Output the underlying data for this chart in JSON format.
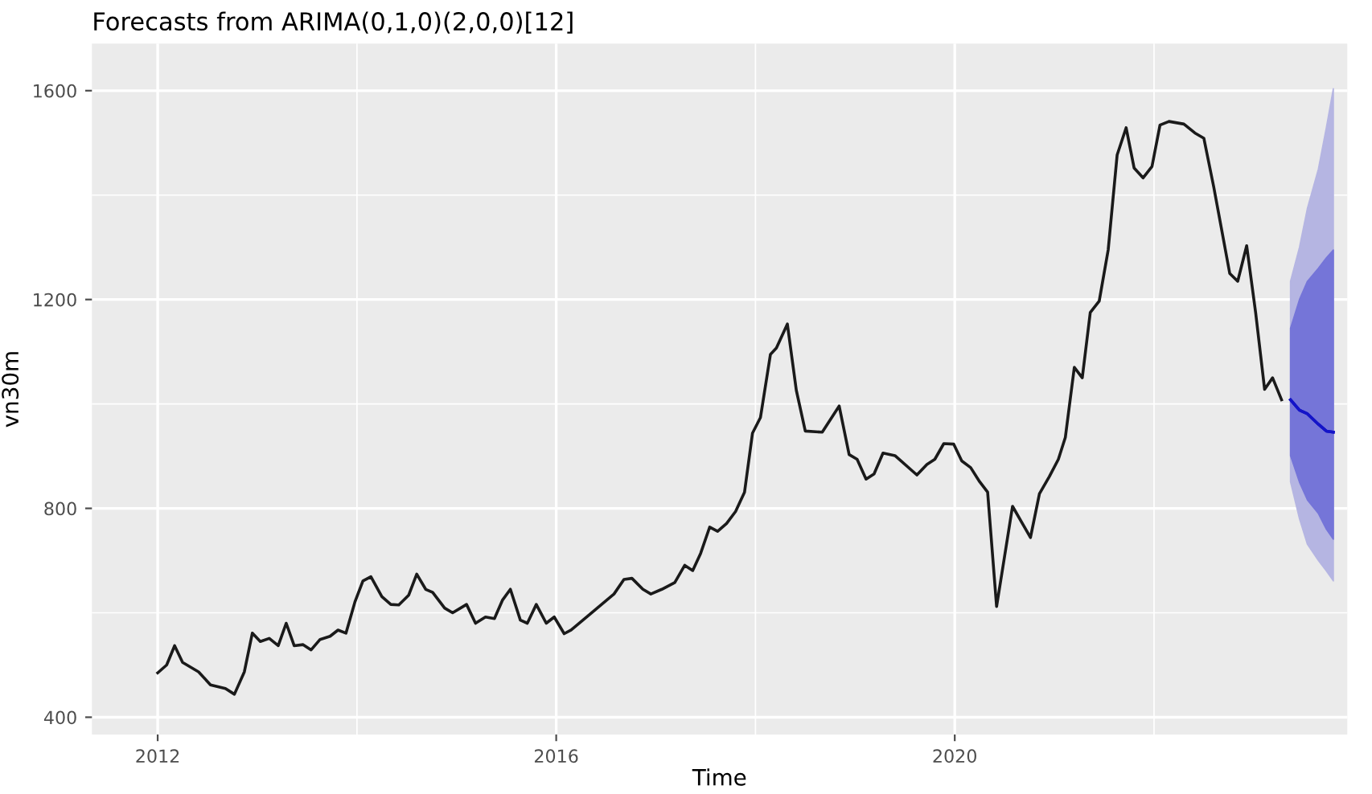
{
  "chart_data": {
    "type": "line",
    "title": "Forecasts from ARIMA(0,1,0)(2,0,0)[12]",
    "xlabel": "Time",
    "ylabel": "vn30m",
    "xlim": [
      2011.34,
      2023.94
    ],
    "ylim": [
      367,
      1690
    ],
    "xticks": [
      2012,
      2016,
      2020
    ],
    "yticks": [
      400,
      800,
      1200,
      1600
    ],
    "grid": true,
    "series": [
      {
        "color": "#1a1a1a",
        "x": [
          2012.0,
          2012.09,
          2012.17,
          2012.25,
          2012.41,
          2012.53,
          2012.68,
          2012.77,
          2012.87,
          2012.95,
          2013.03,
          2013.12,
          2013.21,
          2013.29,
          2013.37,
          2013.46,
          2013.54,
          2013.63,
          2013.73,
          2013.81,
          2013.89,
          2013.98,
          2014.06,
          2014.14,
          2014.25,
          2014.34,
          2014.42,
          2014.52,
          2014.6,
          2014.69,
          2014.76,
          2014.88,
          2014.96,
          2015.1,
          2015.19,
          2015.29,
          2015.38,
          2015.46,
          2015.54,
          2015.64,
          2015.71,
          2015.8,
          2015.9,
          2015.98,
          2016.08,
          2016.15,
          2016.58,
          2016.68,
          2016.76,
          2016.87,
          2016.95,
          2017.06,
          2017.19,
          2017.29,
          2017.37,
          2017.45,
          2017.54,
          2017.62,
          2017.71,
          2017.8,
          2017.89,
          2017.97,
          2018.05,
          2018.15,
          2018.21,
          2018.32,
          2018.41,
          2018.5,
          2018.67,
          2018.84,
          2018.94,
          2019.02,
          2019.11,
          2019.19,
          2019.28,
          2019.4,
          2019.62,
          2019.72,
          2019.8,
          2019.89,
          2019.99,
          2020.07,
          2020.16,
          2020.25,
          2020.33,
          2020.42,
          2020.58,
          2020.76,
          2020.85,
          2020.95,
          2021.04,
          2021.11,
          2021.2,
          2021.28,
          2021.36,
          2021.45,
          2021.54,
          2021.63,
          2021.72,
          2021.8,
          2021.89,
          2021.98,
          2022.06,
          2022.15,
          2022.3,
          2022.41,
          2022.5,
          2022.6,
          2022.76,
          2022.84,
          2022.93,
          2023.02,
          2023.11,
          2023.19,
          2023.28
        ],
        "values": [
          485,
          500,
          537,
          505,
          487,
          462,
          455,
          444,
          487,
          561,
          545,
          551,
          537,
          580,
          537,
          539,
          529,
          549,
          555,
          567,
          561,
          621,
          661,
          669,
          631,
          616,
          615,
          634,
          674,
          645,
          639,
          609,
          600,
          616,
          580,
          592,
          589,
          624,
          645,
          586,
          580,
          616,
          580,
          592,
          560,
          567,
          636,
          664,
          666,
          645,
          636,
          645,
          658,
          691,
          681,
          714,
          764,
          756,
          771,
          794,
          831,
          944,
          974,
          1095,
          1107,
          1153,
          1026,
          948,
          946,
          996,
          903,
          894,
          856,
          866,
          906,
          901,
          864,
          884,
          894,
          924,
          923,
          891,
          878,
          851,
          831,
          612,
          804,
          744,
          828,
          861,
          894,
          936,
          1070,
          1050,
          1175,
          1197,
          1295,
          1477,
          1529,
          1452,
          1433,
          1455,
          1534,
          1541,
          1536,
          1519,
          1509,
          1415,
          1250,
          1235,
          1303,
          1175,
          1028,
          1050,
          1008
        ]
      },
      {
        "color": "#1414c8",
        "x": [
          2023.37,
          2023.46,
          2023.54,
          2023.65,
          2023.73,
          2023.8
        ],
        "values": [
          1008,
          988,
          981,
          961,
          948,
          946
        ],
        "lower": [
          851,
          780,
          731,
          700,
          680,
          661
        ],
        "upper": [
          1235,
          1300,
          1375,
          1450,
          1530,
          1604
        ]
      },
      {
        "color": "#1414c8",
        "x": [
          2023.37,
          2023.46,
          2023.54,
          2023.65,
          2023.73,
          2023.8
        ],
        "values": [
          1008,
          988,
          981,
          961,
          948,
          946
        ],
        "lower": [
          901,
          850,
          816,
          790,
          760,
          741
        ],
        "upper": [
          1145,
          1200,
          1235,
          1260,
          1280,
          1295
        ]
      }
    ]
  }
}
